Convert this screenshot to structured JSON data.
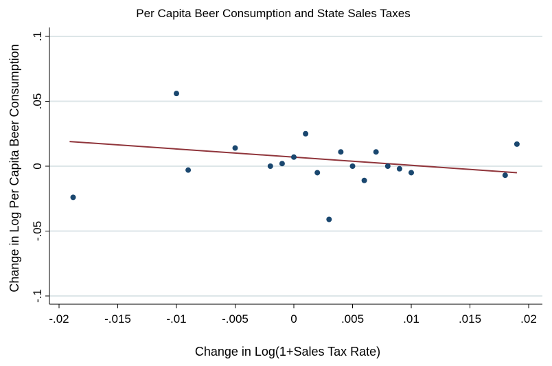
{
  "chart_data": {
    "type": "scatter",
    "title": "Per Capita Beer Consumption and State Sales Taxes",
    "xlabel": "Change in Log(1+Sales Tax Rate)",
    "ylabel": "Change in Log Per Capita Beer Consumption",
    "xlim": [
      -0.0205,
      0.021
    ],
    "ylim": [
      -0.1,
      0.1
    ],
    "xticks": [
      -0.02,
      -0.015,
      -0.01,
      -0.005,
      0,
      0.005,
      0.01,
      0.015,
      0.02
    ],
    "xtick_labels": [
      "-.02",
      "-.015",
      "-.01",
      "-.005",
      "0",
      ".005",
      ".01",
      ".015",
      ".02"
    ],
    "yticks": [
      -0.1,
      -0.05,
      0,
      0.05,
      0.1
    ],
    "ytick_labels": [
      "-.1",
      "-.05",
      "0",
      ".05",
      ".1"
    ],
    "grid": true,
    "point_color": "#1a476f",
    "fit_color": "#90353b",
    "points": [
      {
        "x": -0.0188,
        "y": -0.024
      },
      {
        "x": -0.01,
        "y": 0.056
      },
      {
        "x": -0.009,
        "y": -0.003
      },
      {
        "x": -0.005,
        "y": 0.014
      },
      {
        "x": -0.002,
        "y": 0.0
      },
      {
        "x": -0.001,
        "y": 0.002
      },
      {
        "x": 0.0,
        "y": 0.007
      },
      {
        "x": 0.001,
        "y": 0.025
      },
      {
        "x": 0.002,
        "y": -0.005
      },
      {
        "x": 0.003,
        "y": -0.041
      },
      {
        "x": 0.004,
        "y": 0.011
      },
      {
        "x": 0.005,
        "y": 0.0
      },
      {
        "x": 0.006,
        "y": -0.011
      },
      {
        "x": 0.007,
        "y": 0.011
      },
      {
        "x": 0.008,
        "y": 0.0
      },
      {
        "x": 0.009,
        "y": -0.002
      },
      {
        "x": 0.01,
        "y": -0.005
      },
      {
        "x": 0.018,
        "y": -0.007
      },
      {
        "x": 0.019,
        "y": 0.017
      }
    ],
    "fit_line": {
      "x": [
        -0.0191,
        0.019
      ],
      "y": [
        0.019,
        -0.005
      ]
    }
  }
}
